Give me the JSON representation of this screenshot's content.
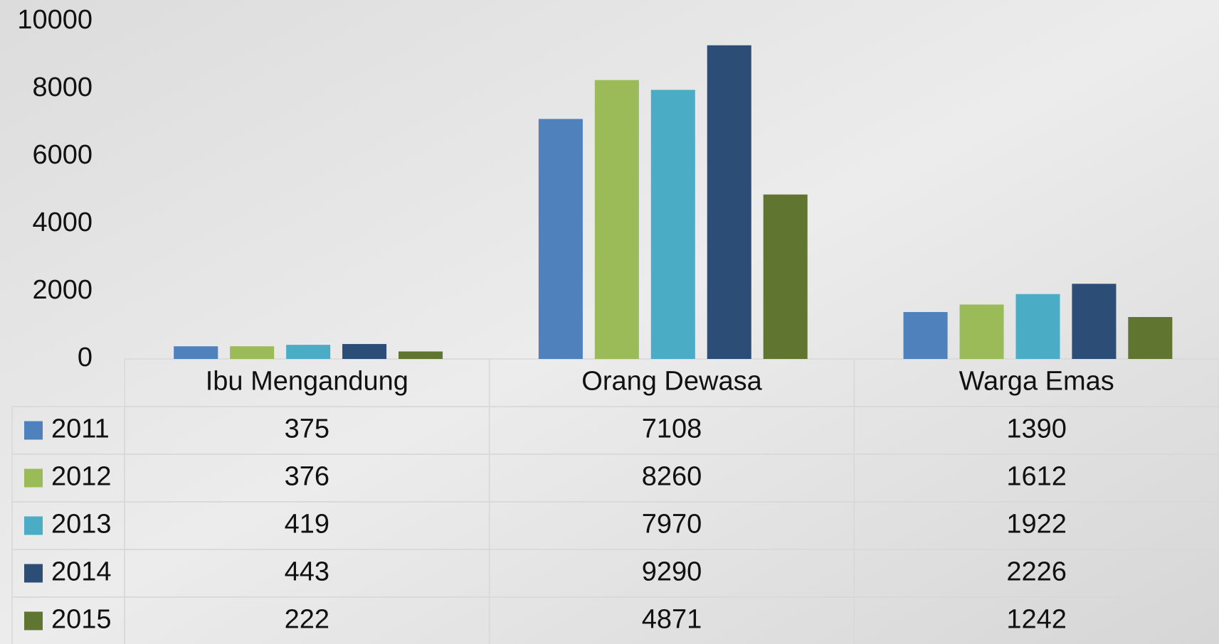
{
  "chart_data": {
    "type": "bar",
    "categories": [
      "Ibu Mengandung",
      "Orang Dewasa",
      "Warga Emas"
    ],
    "series": [
      {
        "name": "2011",
        "color": "#4f81bd",
        "values": [
          375,
          7108,
          1390
        ]
      },
      {
        "name": "2012",
        "color": "#9bbb59",
        "values": [
          376,
          8260,
          1612
        ]
      },
      {
        "name": "2013",
        "color": "#4bacc6",
        "values": [
          419,
          7970,
          1922
        ]
      },
      {
        "name": "2014",
        "color": "#2c4d75",
        "values": [
          443,
          9290,
          2226
        ]
      },
      {
        "name": "2015",
        "color": "#5f7530",
        "values": [
          222,
          4871,
          1242
        ]
      }
    ],
    "ylim": [
      0,
      10000
    ],
    "yticks": [
      0,
      2000,
      4000,
      6000,
      8000,
      10000
    ],
    "grid": false,
    "data_table": true
  }
}
